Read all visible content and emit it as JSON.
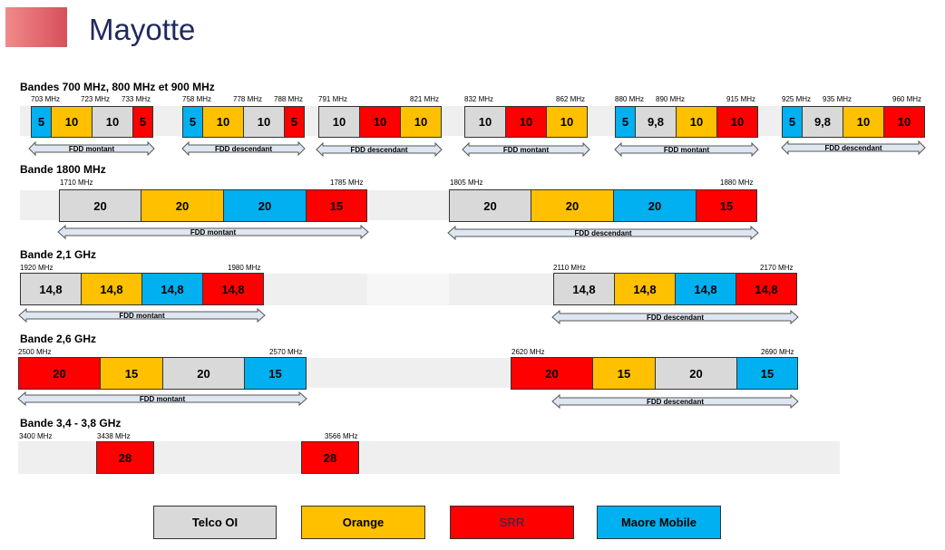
{
  "title": "Mayotte",
  "colors": {
    "telco": "#d9d9d9",
    "orange": "#ffc000",
    "srr": "#ff0000",
    "maore": "#00b0f0"
  },
  "sections": {
    "b700": "Bandes 700 MHz, 800 MHz et 900 MHz",
    "b1800": "Bande 1800 MHz",
    "b21": "Bande 2,1 GHz",
    "b26": "Bande 2,6 GHz",
    "b34": "Bande 3,4 - 3,8 GHz"
  },
  "g700_1": {
    "f1": "703 MHz",
    "f2": "723 MHz",
    "f3": "733 MHz",
    "s1": "5",
    "s2": "10",
    "s3": "10",
    "s4": "5",
    "arrow": "FDD montant"
  },
  "g700_2": {
    "f1": "758 MHz",
    "f2": "778 MHz",
    "f3": "788 MHz",
    "s1": "5",
    "s2": "10",
    "s3": "10",
    "s4": "5",
    "arrow": "FDD descendant"
  },
  "g800_1": {
    "f1": "791 MHz",
    "f2": "821 MHz",
    "s1": "10",
    "s2": "10",
    "s3": "10",
    "arrow": "FDD descendant"
  },
  "g800_2": {
    "f1": "832 MHz",
    "f2": "862 MHz",
    "s1": "10",
    "s2": "10",
    "s3": "10",
    "arrow": "FDD montant"
  },
  "g900_1": {
    "f1": "880 MHz",
    "f2": "890 MHz",
    "f3": "915 MHz",
    "s1": "5",
    "s2": "9,8",
    "s3": "10",
    "s4": "10",
    "arrow": "FDD montant"
  },
  "g900_2": {
    "f1": "925 MHz",
    "f2": "935 MHz",
    "f3": "960 MHz",
    "s1": "5",
    "s2": "9,8",
    "s3": "10",
    "s4": "10",
    "arrow": "FDD descendant"
  },
  "g1800_1": {
    "f1": "1710 MHz",
    "f2": "1785 MHz",
    "s1": "20",
    "s2": "20",
    "s3": "20",
    "s4": "15",
    "arrow": "FDD montant"
  },
  "g1800_2": {
    "f1": "1805 MHz",
    "f2": "1880 MHz",
    "s1": "20",
    "s2": "20",
    "s3": "20",
    "s4": "15",
    "arrow": "FDD descendant"
  },
  "g21_1": {
    "f1": "1920 MHz",
    "f2": "1980 MHz",
    "s1": "14,8",
    "s2": "14,8",
    "s3": "14,8",
    "s4": "14,8",
    "arrow": "FDD montant"
  },
  "g21_2": {
    "f1": "2110 MHz",
    "f2": "2170 MHz",
    "s1": "14,8",
    "s2": "14,8",
    "s3": "14,8",
    "s4": "14,8",
    "arrow": "FDD descendant"
  },
  "g26_1": {
    "f1": "2500 MHz",
    "f2": "2570 MHz",
    "s1": "20",
    "s2": "15",
    "s3": "20",
    "s4": "15",
    "arrow": "FDD montant"
  },
  "g26_2": {
    "f1": "2620 MHz",
    "f2": "2690 MHz",
    "s1": "20",
    "s2": "15",
    "s3": "20",
    "s4": "15",
    "arrow": "FDD descendant"
  },
  "g34": {
    "f1": "3400 MHz",
    "f2": "3438 MHz",
    "f3": "3566 MHz",
    "s1": "28",
    "s2": "28"
  },
  "legend": {
    "telco": "Telco OI",
    "orange": "Orange",
    "srr": "SRR",
    "maore": "Maore Mobile"
  }
}
